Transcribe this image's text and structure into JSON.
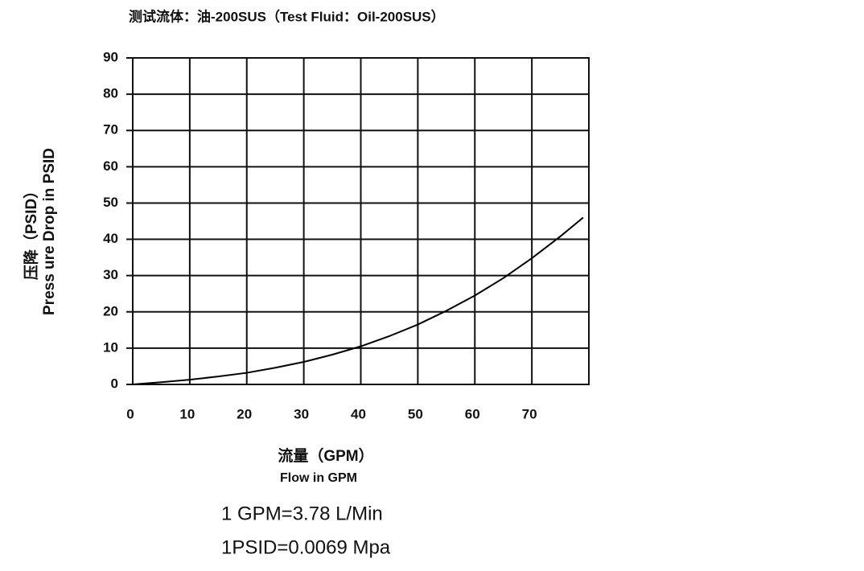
{
  "chart_data": {
    "type": "line",
    "title": "测试流体：油-200SUS（Test Fluid：Oil-200SUS）",
    "y_label": [
      "压降（PSID）",
      "Press ure Drop in PSID"
    ],
    "x_label": [
      "流量（GPM）",
      "Flow in GPM"
    ],
    "notes": [
      "1 GPM=3.78 L/Min",
      "1PSID=0.0069 Mpa"
    ],
    "x": [
      0,
      5,
      10,
      15,
      20,
      25,
      30,
      35,
      40,
      45,
      50,
      55,
      60,
      65,
      70,
      75,
      79
    ],
    "series": [
      {
        "name": null,
        "color": "#000000",
        "values": [
          0,
          0.6,
          1.3,
          2.2,
          3.2,
          4.6,
          6.2,
          8.2,
          10.5,
          13.3,
          16.5,
          20.3,
          24.5,
          29.3,
          34.8,
          40.8,
          46
        ]
      }
    ],
    "xlim": [
      0,
      80
    ],
    "ylim": [
      0,
      90
    ],
    "xticks": [
      0,
      10,
      20,
      30,
      40,
      50,
      60,
      70
    ],
    "yticks": [
      0,
      10,
      20,
      30,
      40,
      50,
      60,
      70,
      80,
      90
    ],
    "grid": true
  }
}
